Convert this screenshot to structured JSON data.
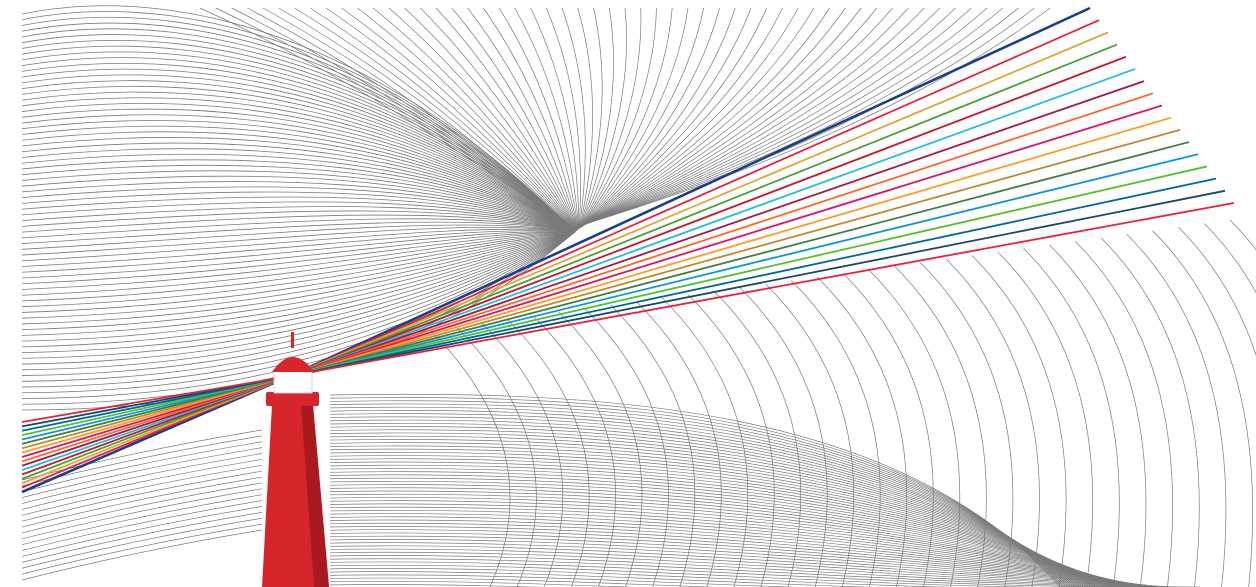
{
  "illustration": {
    "subject": "lighthouse-with-beams",
    "background_color": "#ffffff",
    "line_color": "#7a7a7a",
    "tower_color": "#d7262b",
    "tower_shade_color": "#a81a1f",
    "beam_colors": [
      "#1b3f8b",
      "#e5243b",
      "#dda63a",
      "#4c9f38",
      "#c5192d",
      "#26bde2",
      "#a21942",
      "#fd6925",
      "#dd1367",
      "#fd9d24",
      "#bf8b2e",
      "#3f7e44",
      "#0a97d9",
      "#56c02b",
      "#00689d",
      "#19486a",
      "#e5243b"
    ]
  }
}
